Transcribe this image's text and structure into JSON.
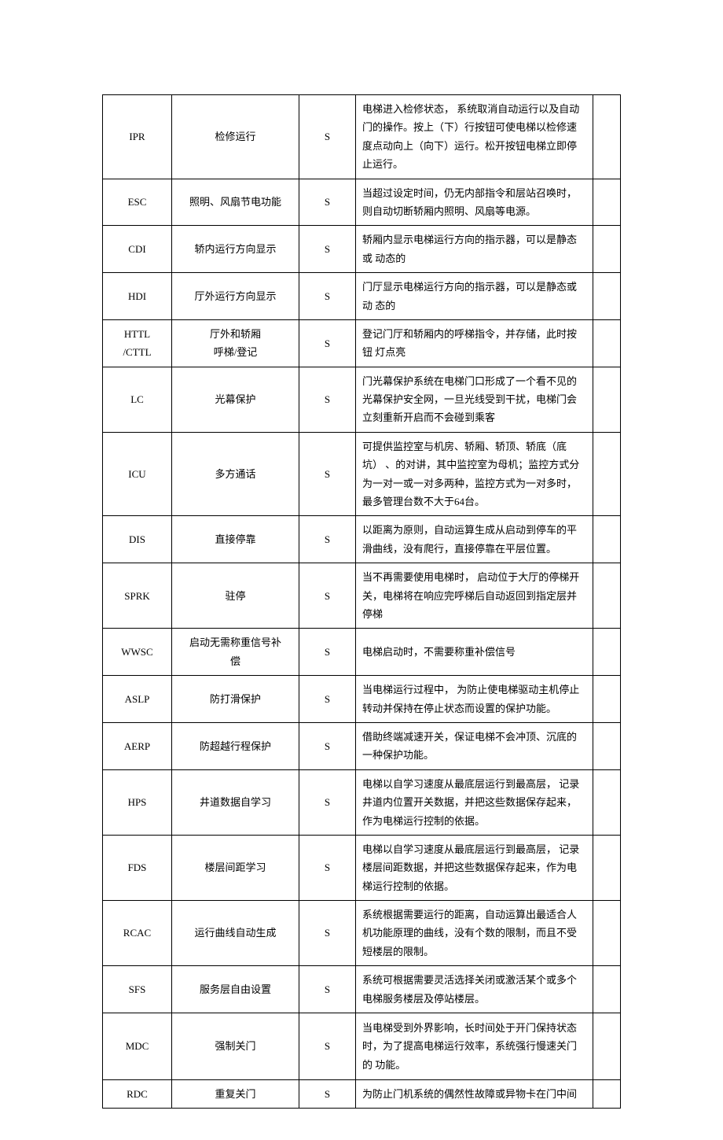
{
  "table": {
    "columns": {
      "code_width": 88,
      "name_width": 162,
      "type_width": 72,
      "last_width": 35
    },
    "styling": {
      "border_color": "#000000",
      "background_color": "#ffffff",
      "text_color": "#000000",
      "font_family": "SimSun",
      "font_size": 13,
      "line_height": 1.8,
      "cell_padding": "6px 8px",
      "code_align": "center",
      "name_align": "center",
      "type_align": "center",
      "desc_align": "left"
    },
    "rows": [
      {
        "code": "IPR",
        "name": "检修运行",
        "type": "S",
        "desc": "电梯进入检修状态，  系统取消自动运行以及自动门的操作。按上（下）行按钮可使电梯以检修速度点动向上（向下）运行。松开按钮电梯立即停止运行。"
      },
      {
        "code": "ESC",
        "name": "照明、风扇节电功能",
        "type": "S",
        "desc": "当超过设定时间，仍无内部指令和层站召唤时，则自动切断轿厢内照明、风扇等电源。"
      },
      {
        "code": "CDI",
        "name": "轿内运行方向显示",
        "type": "S",
        "desc": "轿厢内显示电梯运行方向的指示器，可以是静态或  动态的"
      },
      {
        "code": "HDI",
        "name": "厅外运行方向显示",
        "type": "S",
        "desc": "门厅显示电梯运行方向的指示器，可以是静态或动  态的"
      },
      {
        "code": "HTTL /CTTL",
        "code_multiline": [
          "HTTL",
          "/CTTL"
        ],
        "name": "厅外和轿厢 呼梯/登记",
        "name_multiline": [
          "厅外和轿厢",
          "呼梯/登记"
        ],
        "type": "S",
        "desc": "登记门厅和轿厢内的呼梯指令，并存储，此时按钮  灯点亮"
      },
      {
        "code": "LC",
        "name": "光幕保护",
        "type": "S",
        "desc": "门光幕保护系统在电梯门口形成了一个看不见的光幕保护安全网，一旦光线受到干扰，电梯门会立刻重新开启而不会碰到乘客"
      },
      {
        "code": "ICU",
        "name": "多方通话",
        "type": "S",
        "desc": "可提供监控室与机房、轿厢、轿顶、轿底（底坑）     、的对讲，其中监控室为母机；监控方式分为一对一或一对多两种，监控方式为一对多时，最多管理台数不大于64台。"
      },
      {
        "code": "DIS",
        "name": "直接停靠",
        "type": "S",
        "desc": "以距离为原则，自动运算生成从启动到停车的平滑曲线，没有爬行，直接停靠在平层位置。"
      },
      {
        "code": "SPRK",
        "name": "驻停",
        "type": "S",
        "desc": "当不再需要使用电梯时，  启动位于大厅的停梯开关，电梯将在响应完呼梯后自动返回到指定层并停梯"
      },
      {
        "code": "WWSC",
        "name": "启动无需称重信号补偿",
        "name_multiline": [
          "启动无需称重信号补",
          "偿"
        ],
        "type": "S",
        "desc": "电梯启动时，不需要称重补偿信号"
      },
      {
        "code": "ASLP",
        "name": "防打滑保护",
        "type": "S",
        "desc": "当电梯运行过程中，  为防止使电梯驱动主机停止转动并保持在停止状态而设置的保护功能。"
      },
      {
        "code": "AERP",
        "name": "防超越行程保护",
        "type": "S",
        "desc": "借助终端减速开关，保证电梯不会冲顶、沉底的一种保护功能。"
      },
      {
        "code": "HPS",
        "name": "井道数据自学习",
        "type": "S",
        "desc": "电梯以自学习速度从最底层运行到最高层，       记录井道内位置开关数据，并把这些数据保存起来，作为电梯运行控制的依据。"
      },
      {
        "code": "FDS",
        "name": "楼层间距学习",
        "type": "S",
        "desc": "电梯以自学习速度从最底层运行到最高层，       记录楼层间距数据，并把这些数据保存起来，作为电梯运行控制的依据。"
      },
      {
        "code": "RCAC",
        "name": "运行曲线自动生成",
        "type": "S",
        "desc": "系统根据需要运行的距离，自动运算出最适合人机功能原理的曲线，没有个数的限制，而且不受短楼层的限制。"
      },
      {
        "code": "SFS",
        "name": "服务层自由设置",
        "type": "S",
        "desc": "系统可根据需要灵活选择关闭或激活某个或多个电梯服务楼层及停站楼层。"
      },
      {
        "code": "MDC",
        "name": "强制关门",
        "type": "S",
        "desc": "当电梯受到外界影响，长时间处于开门保持状态时，为了提高电梯运行效率，系统强行慢速关门的  功能。",
        "tall": true
      },
      {
        "code": "RDC",
        "name": "重复关门",
        "type": "S",
        "desc": "为防止门机系统的偶然性故障或异物卡在门中间"
      }
    ]
  }
}
